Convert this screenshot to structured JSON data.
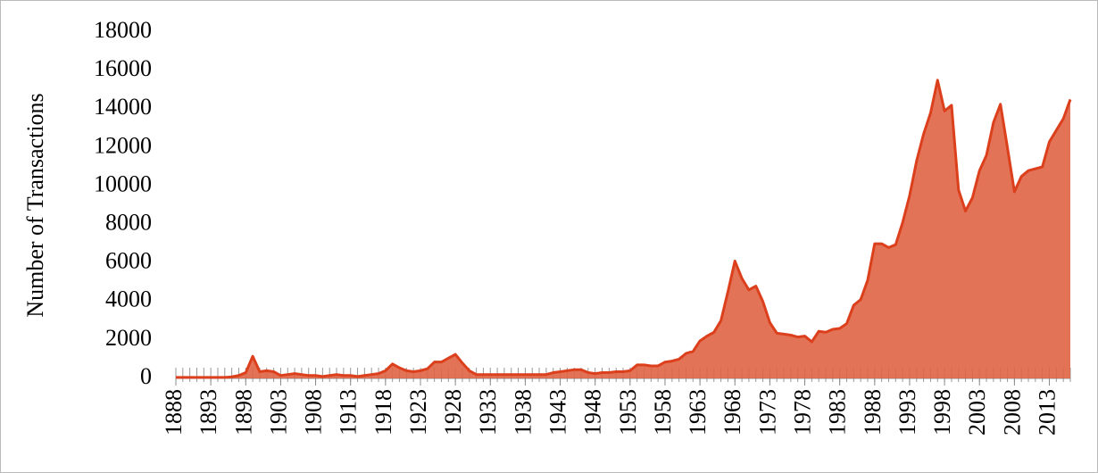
{
  "chart_data": {
    "type": "area",
    "y_label": "Number of Transactions",
    "x": [
      1888,
      1889,
      1890,
      1891,
      1892,
      1893,
      1894,
      1895,
      1896,
      1897,
      1898,
      1899,
      1900,
      1901,
      1902,
      1903,
      1904,
      1905,
      1906,
      1907,
      1908,
      1909,
      1910,
      1911,
      1912,
      1913,
      1914,
      1915,
      1916,
      1917,
      1918,
      1919,
      1920,
      1921,
      1922,
      1923,
      1924,
      1925,
      1926,
      1927,
      1928,
      1929,
      1930,
      1931,
      1932,
      1933,
      1934,
      1935,
      1936,
      1937,
      1938,
      1939,
      1940,
      1941,
      1942,
      1943,
      1944,
      1945,
      1946,
      1947,
      1948,
      1949,
      1950,
      1951,
      1952,
      1953,
      1954,
      1955,
      1956,
      1957,
      1958,
      1959,
      1960,
      1961,
      1962,
      1963,
      1964,
      1965,
      1966,
      1967,
      1968,
      1969,
      1970,
      1971,
      1972,
      1973,
      1974,
      1975,
      1976,
      1977,
      1978,
      1979,
      1980,
      1981,
      1982,
      1983,
      1984,
      1985,
      1986,
      1987,
      1988,
      1989,
      1990,
      1991,
      1992,
      1993,
      1994,
      1995,
      1996,
      1997,
      1998,
      1999,
      2000,
      2001,
      2002,
      2003,
      2004,
      2005,
      2006,
      2007,
      2008,
      2009,
      2010,
      2011,
      2012,
      2013,
      2014,
      2015,
      2016
    ],
    "values": [
      50,
      50,
      50,
      50,
      50,
      50,
      50,
      50,
      80,
      150,
      300,
      1150,
      350,
      400,
      350,
      150,
      200,
      250,
      200,
      150,
      150,
      100,
      150,
      200,
      150,
      150,
      100,
      150,
      200,
      250,
      400,
      750,
      550,
      400,
      350,
      400,
      500,
      850,
      850,
      1050,
      1250,
      800,
      400,
      200,
      200,
      200,
      200,
      200,
      200,
      200,
      200,
      200,
      200,
      200,
      300,
      350,
      400,
      450,
      450,
      300,
      250,
      300,
      300,
      350,
      350,
      400,
      700,
      700,
      650,
      650,
      850,
      900,
      1000,
      1300,
      1400,
      1950,
      2200,
      2400,
      3000,
      4500,
      6100,
      5200,
      4600,
      4800,
      4000,
      2900,
      2350,
      2300,
      2250,
      2150,
      2200,
      1900,
      2450,
      2400,
      2550,
      2600,
      2850,
      3800,
      4100,
      5100,
      7000,
      7000,
      6800,
      6950,
      8100,
      9500,
      11300,
      12700,
      13800,
      15500,
      13900,
      14200,
      9800,
      8700,
      9400,
      10800,
      11600,
      13300,
      14250,
      12000,
      9700,
      10500,
      10800,
      10900,
      11000,
      12300,
      12900,
      13500,
      14500
    ],
    "color": "#e06444",
    "line_color": "#dc3f1c",
    "xlim": [
      1888,
      2016
    ],
    "xticks": [
      1888,
      1893,
      1898,
      1903,
      1908,
      1913,
      1918,
      1923,
      1928,
      1933,
      1938,
      1943,
      1948,
      1953,
      1958,
      1963,
      1968,
      1973,
      1978,
      1983,
      1988,
      1993,
      1998,
      2003,
      2008,
      2013
    ],
    "ylim": [
      0,
      18000
    ],
    "yticks": [
      0,
      2000,
      4000,
      6000,
      8000,
      10000,
      12000,
      14000,
      16000,
      18000
    ]
  }
}
